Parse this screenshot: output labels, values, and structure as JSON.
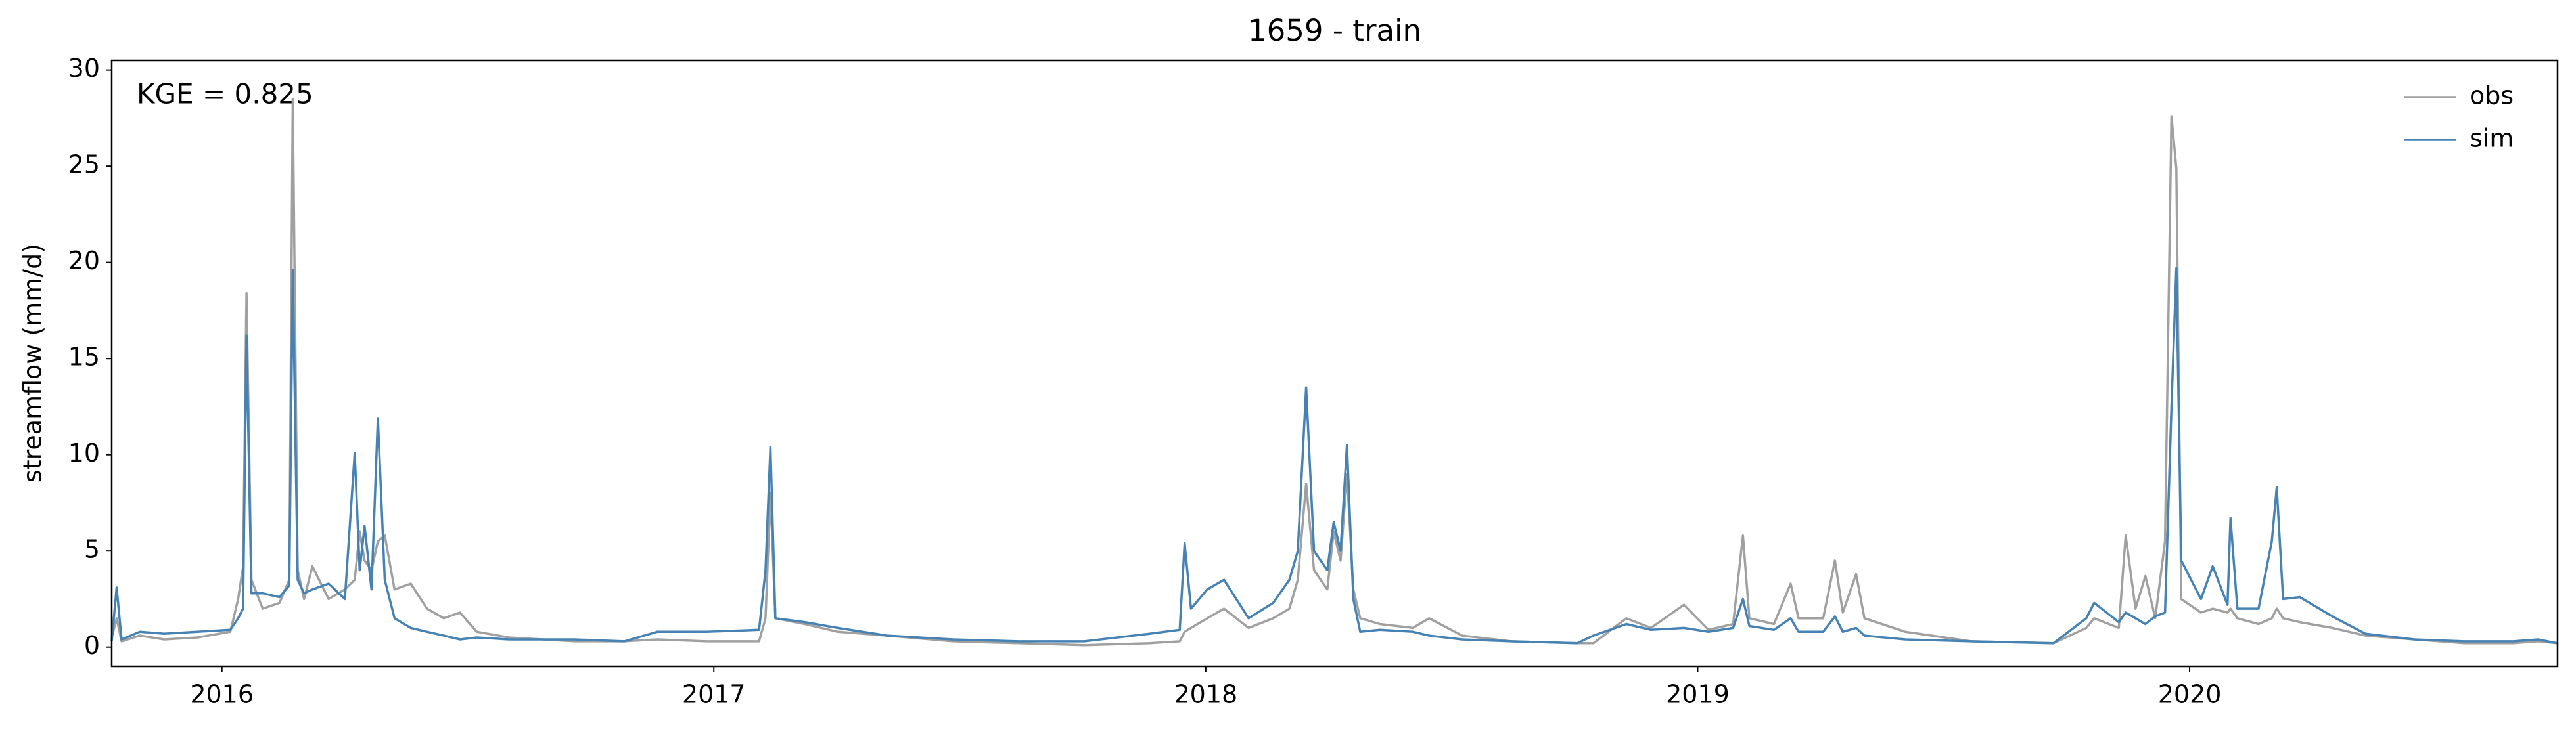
{
  "chart_data": {
    "type": "line",
    "title": "1659 - train",
    "ylabel": "streamflow (mm/d)",
    "annotation": "KGE = 0.825",
    "legend": "upper right",
    "xlim": [
      2015.776,
      2020.748
    ],
    "xticks": [
      2016,
      2017,
      2018,
      2019,
      2020
    ],
    "ylim": [
      -1,
      30.5
    ],
    "yticks": [
      0,
      5,
      10,
      15,
      20,
      25,
      30
    ],
    "x": [
      2015.776,
      2015.786,
      2015.796,
      2015.833,
      2015.883,
      2015.95,
      2016.017,
      2016.033,
      2016.043,
      2016.05,
      2016.06,
      2016.083,
      2016.117,
      2016.137,
      2016.144,
      2016.154,
      2016.167,
      2016.184,
      2016.217,
      2016.25,
      2016.27,
      2016.28,
      2016.29,
      2016.304,
      2016.317,
      2016.331,
      2016.351,
      2016.384,
      2016.417,
      2016.451,
      2016.484,
      2016.518,
      2016.584,
      2016.718,
      2016.818,
      2016.885,
      2016.985,
      2017.092,
      2017.105,
      2017.115,
      2017.125,
      2017.185,
      2017.252,
      2017.352,
      2017.486,
      2017.619,
      2017.753,
      2017.886,
      2017.947,
      2017.957,
      2017.97,
      2018.003,
      2018.037,
      2018.087,
      2018.137,
      2018.17,
      2018.187,
      2018.204,
      2018.22,
      2018.247,
      2018.26,
      2018.274,
      2018.287,
      2018.3,
      2018.314,
      2018.354,
      2018.421,
      2018.454,
      2018.521,
      2018.621,
      2018.755,
      2018.788,
      2018.855,
      2018.905,
      2018.972,
      2019.022,
      2019.072,
      2019.092,
      2019.105,
      2019.155,
      2019.189,
      2019.205,
      2019.255,
      2019.279,
      2019.295,
      2019.322,
      2019.339,
      2019.422,
      2019.556,
      2019.723,
      2019.79,
      2019.806,
      2019.856,
      2019.87,
      2019.89,
      2019.91,
      2019.93,
      2019.95,
      2019.963,
      2019.973,
      2019.983,
      2020.023,
      2020.047,
      2020.077,
      2020.083,
      2020.097,
      2020.14,
      2020.167,
      2020.177,
      2020.19,
      2020.224,
      2020.29,
      2020.357,
      2020.457,
      2020.558,
      2020.658,
      2020.708,
      2020.748
    ],
    "series": [
      {
        "name": "obs",
        "color": "#a0a0a0",
        "values": [
          0.5,
          1.5,
          0.3,
          0.6,
          0.4,
          0.5,
          0.8,
          2.5,
          4.2,
          18.4,
          3.5,
          2.0,
          2.3,
          3.5,
          28.5,
          4.0,
          2.5,
          4.2,
          2.5,
          3.0,
          3.5,
          6.0,
          4.5,
          4.0,
          5.5,
          5.8,
          3.0,
          3.3,
          2.0,
          1.5,
          1.8,
          0.8,
          0.5,
          0.3,
          0.3,
          0.4,
          0.3,
          0.3,
          1.5,
          8.0,
          1.5,
          1.2,
          0.8,
          0.6,
          0.3,
          0.2,
          0.1,
          0.2,
          0.3,
          0.8,
          1.0,
          1.5,
          2.0,
          1.0,
          1.5,
          2.0,
          3.5,
          8.5,
          4.0,
          3.0,
          6.0,
          4.5,
          9.0,
          3.0,
          1.5,
          1.2,
          1.0,
          1.5,
          0.6,
          0.3,
          0.2,
          0.2,
          1.5,
          1.0,
          2.2,
          0.9,
          1.2,
          5.8,
          1.5,
          1.2,
          3.3,
          1.5,
          1.5,
          4.5,
          1.8,
          3.8,
          1.5,
          0.8,
          0.3,
          0.2,
          1.0,
          1.5,
          1.0,
          5.8,
          2.0,
          3.7,
          1.5,
          5.5,
          27.6,
          24.9,
          2.5,
          1.8,
          2.0,
          1.8,
          2.0,
          1.5,
          1.2,
          1.5,
          2.0,
          1.5,
          1.3,
          1.0,
          0.6,
          0.4,
          0.2,
          0.2,
          0.3,
          0.2
        ]
      },
      {
        "name": "sim",
        "color": "#4682b4",
        "values": [
          0.3,
          3.1,
          0.4,
          0.8,
          0.7,
          0.8,
          0.9,
          1.5,
          2.0,
          16.2,
          2.8,
          2.8,
          2.6,
          3.2,
          19.6,
          3.5,
          2.8,
          3.0,
          3.3,
          2.5,
          10.1,
          4.0,
          6.3,
          3.0,
          11.9,
          3.5,
          1.5,
          1.0,
          0.8,
          0.6,
          0.4,
          0.5,
          0.4,
          0.4,
          0.3,
          0.8,
          0.8,
          0.9,
          4.0,
          10.4,
          1.5,
          1.3,
          1.0,
          0.6,
          0.4,
          0.3,
          0.3,
          0.7,
          0.9,
          5.4,
          2.0,
          3.0,
          3.5,
          1.5,
          2.3,
          3.5,
          5.0,
          13.5,
          5.0,
          4.0,
          6.5,
          5.0,
          10.5,
          2.5,
          0.8,
          0.9,
          0.8,
          0.6,
          0.4,
          0.3,
          0.2,
          0.6,
          1.2,
          0.9,
          1.0,
          0.8,
          1.0,
          2.5,
          1.1,
          0.9,
          1.5,
          0.8,
          0.8,
          1.6,
          0.8,
          1.0,
          0.6,
          0.4,
          0.3,
          0.2,
          1.5,
          2.3,
          1.3,
          1.8,
          1.5,
          1.2,
          1.6,
          1.8,
          12.5,
          19.7,
          4.5,
          2.5,
          4.2,
          2.2,
          6.7,
          2.0,
          2.0,
          5.5,
          8.3,
          2.5,
          2.6,
          1.6,
          0.7,
          0.4,
          0.3,
          0.3,
          0.4,
          0.2
        ]
      }
    ]
  }
}
